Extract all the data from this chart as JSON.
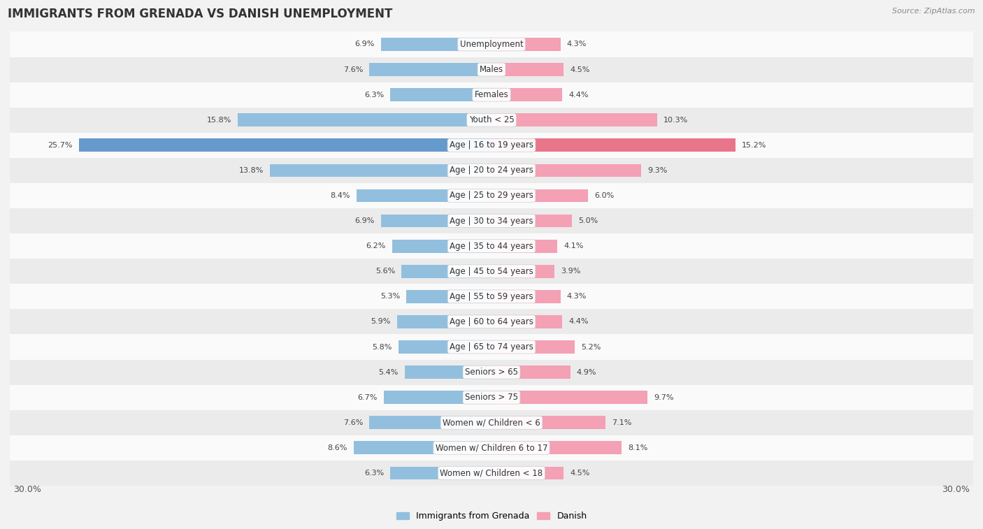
{
  "title": "IMMIGRANTS FROM GRENADA VS DANISH UNEMPLOYMENT",
  "source": "Source: ZipAtlas.com",
  "categories": [
    "Unemployment",
    "Males",
    "Females",
    "Youth < 25",
    "Age | 16 to 19 years",
    "Age | 20 to 24 years",
    "Age | 25 to 29 years",
    "Age | 30 to 34 years",
    "Age | 35 to 44 years",
    "Age | 45 to 54 years",
    "Age | 55 to 59 years",
    "Age | 60 to 64 years",
    "Age | 65 to 74 years",
    "Seniors > 65",
    "Seniors > 75",
    "Women w/ Children < 6",
    "Women w/ Children 6 to 17",
    "Women w/ Children < 18"
  ],
  "left_values": [
    6.9,
    7.6,
    6.3,
    15.8,
    25.7,
    13.8,
    8.4,
    6.9,
    6.2,
    5.6,
    5.3,
    5.9,
    5.8,
    5.4,
    6.7,
    7.6,
    8.6,
    6.3
  ],
  "right_values": [
    4.3,
    4.5,
    4.4,
    10.3,
    15.2,
    9.3,
    6.0,
    5.0,
    4.1,
    3.9,
    4.3,
    4.4,
    5.2,
    4.9,
    9.7,
    7.1,
    8.1,
    4.5
  ],
  "left_color": "#92bfde",
  "right_color": "#f4a0b5",
  "left_color_highlight": "#6699cc",
  "right_color_highlight": "#e8758a",
  "bar_height": 0.52,
  "xlim": 30.0,
  "bg_color": "#f2f2f2",
  "row_colors": [
    "#fafafa",
    "#ebebeb"
  ],
  "legend_left": "Immigrants from Grenada",
  "legend_right": "Danish",
  "axis_label_left": "30.0%",
  "axis_label_right": "30.0%",
  "title_fontsize": 12,
  "source_fontsize": 8,
  "label_fontsize": 9,
  "value_fontsize": 8,
  "cat_fontsize": 8.5
}
